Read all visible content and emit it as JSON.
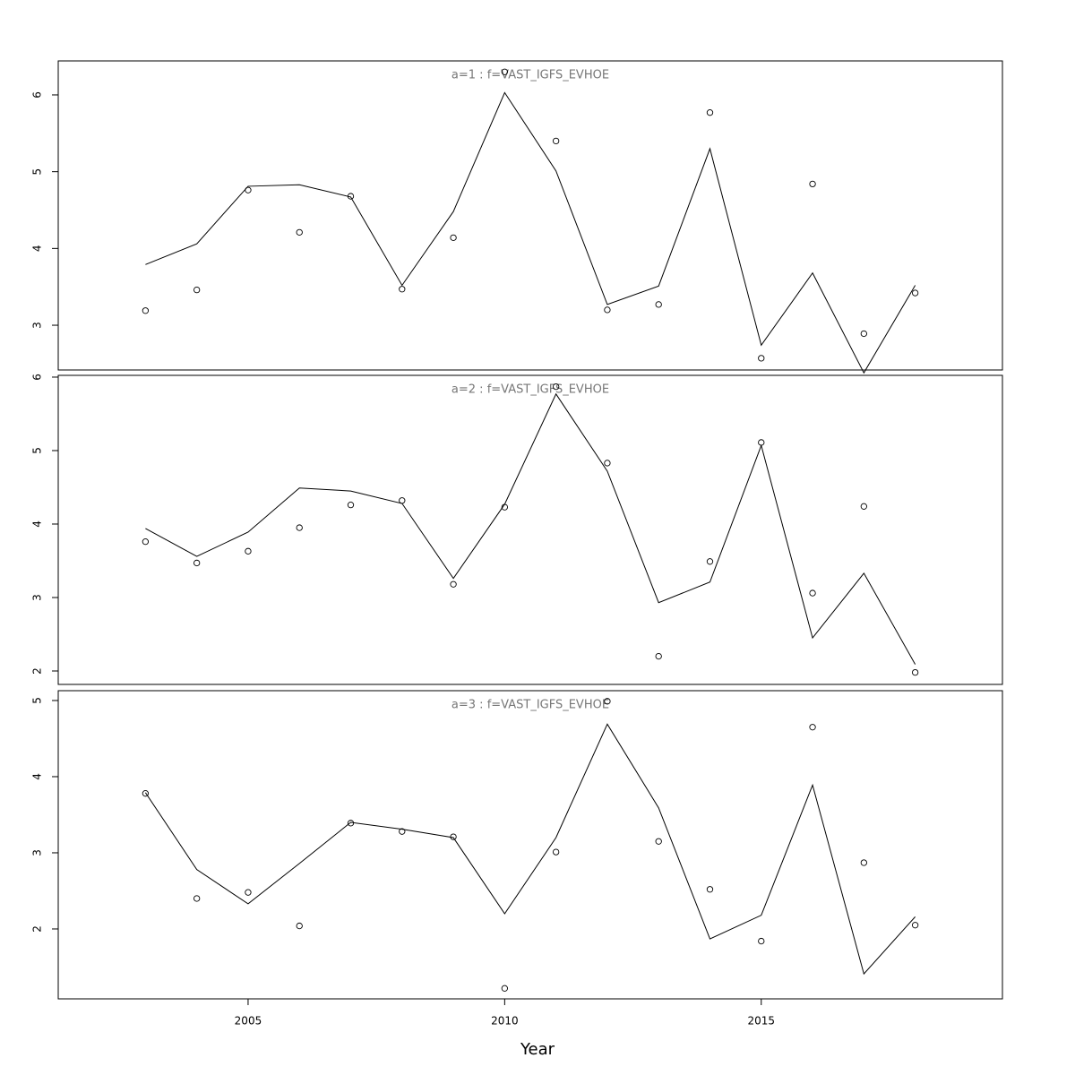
{
  "chart_data": [
    {
      "type": "line",
      "title": "a=1  :  f=VAST_IGFS_EVHOE",
      "x": [
        2003,
        2004,
        2005,
        2006,
        2007,
        2008,
        2009,
        2010,
        2011,
        2012,
        2013,
        2014,
        2015,
        2016,
        2017,
        2018
      ],
      "line_values": [
        3.79,
        4.06,
        4.81,
        4.83,
        4.67,
        3.52,
        4.48,
        6.03,
        5.01,
        3.27,
        3.51,
        5.3,
        2.74,
        3.68,
        2.38,
        3.52
      ],
      "point_values": [
        3.19,
        3.46,
        4.76,
        4.21,
        4.68,
        3.47,
        4.14,
        6.3,
        5.4,
        3.2,
        3.27,
        5.77,
        2.57,
        4.84,
        2.89,
        3.42
      ],
      "color": "#000000",
      "xlim": [
        2001.3,
        2019.7
      ],
      "ylim": [
        2.417,
        6.443
      ],
      "yticks": [
        3,
        4,
        5,
        6
      ]
    },
    {
      "type": "line",
      "title": "a=2  :  f=VAST_IGFS_EVHOE",
      "x": [
        2003,
        2004,
        2005,
        2006,
        2007,
        2008,
        2009,
        2010,
        2011,
        2012,
        2013,
        2014,
        2015,
        2016,
        2017,
        2018
      ],
      "line_values": [
        3.94,
        3.56,
        3.89,
        4.49,
        4.45,
        4.28,
        3.26,
        4.27,
        5.77,
        4.72,
        2.93,
        3.21,
        5.07,
        2.45,
        3.33,
        2.09
      ],
      "point_values": [
        3.76,
        3.47,
        3.63,
        3.95,
        4.26,
        4.32,
        3.18,
        4.23,
        5.87,
        4.83,
        2.2,
        3.49,
        5.11,
        3.06,
        4.24,
        1.98
      ],
      "color": "#000000",
      "xlim": [
        2001.3,
        2019.7
      ],
      "ylim": [
        1.817,
        6.024
      ],
      "yticks": [
        2,
        3,
        4,
        5,
        6
      ]
    },
    {
      "type": "line",
      "title": "a=3  :  f=VAST_IGFS_EVHOE",
      "x": [
        2003,
        2004,
        2005,
        2006,
        2007,
        2008,
        2009,
        2010,
        2011,
        2012,
        2013,
        2014,
        2015,
        2016,
        2017,
        2018
      ],
      "line_values": [
        3.79,
        2.78,
        2.33,
        2.86,
        3.4,
        3.31,
        3.2,
        2.2,
        3.2,
        4.69,
        3.59,
        1.87,
        2.18,
        3.89,
        1.41,
        2.16
      ],
      "point_values": [
        3.78,
        2.4,
        2.48,
        2.04,
        3.39,
        3.28,
        3.21,
        1.22,
        3.01,
        4.99,
        3.15,
        2.52,
        1.84,
        4.65,
        2.87,
        2.05
      ],
      "color": "#000000",
      "xlim": [
        2001.3,
        2019.7
      ],
      "ylim": [
        1.082,
        5.129
      ],
      "yticks": [
        2,
        3,
        4,
        5
      ],
      "xticks": [
        2005,
        2010,
        2015
      ],
      "xlabel": "Year"
    }
  ]
}
